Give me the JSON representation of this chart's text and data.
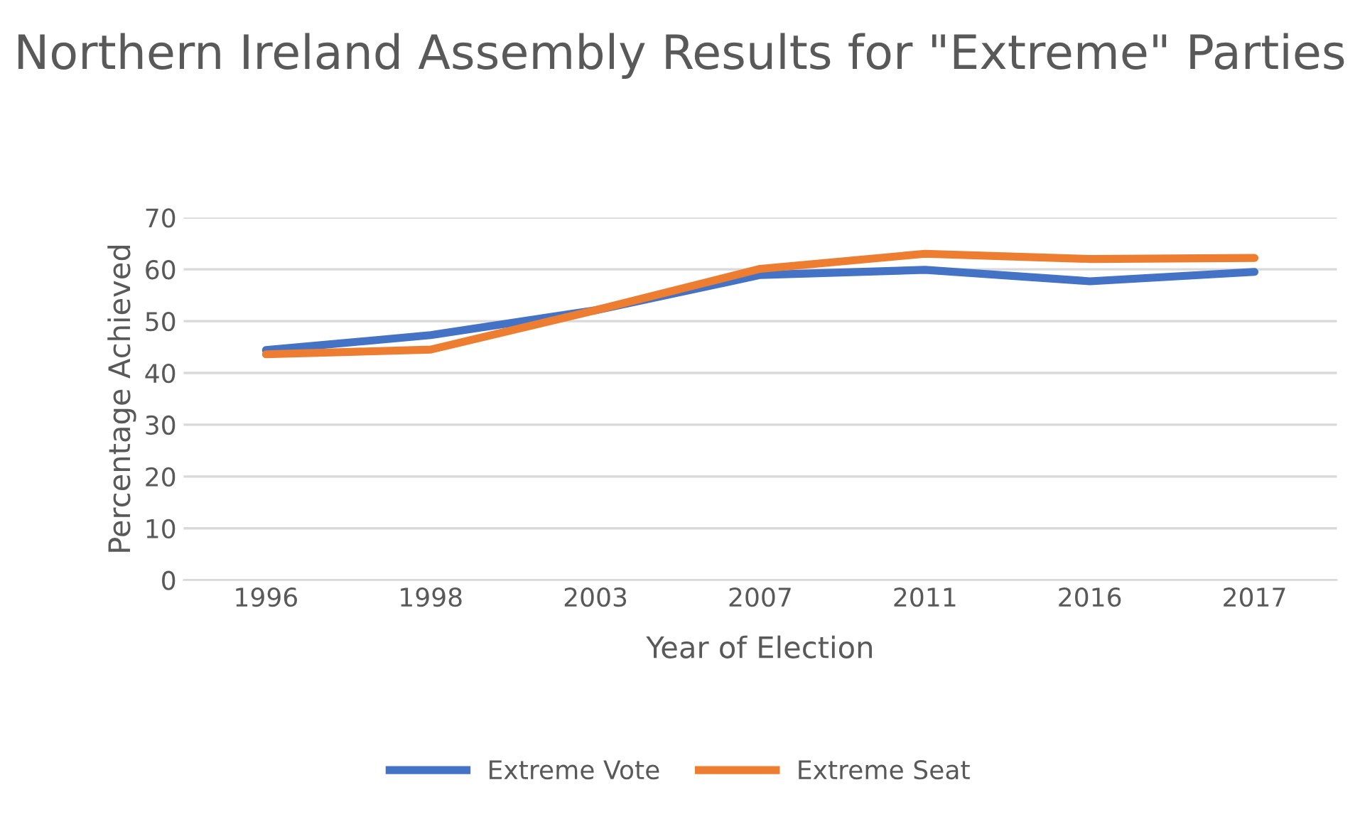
{
  "chart_data": {
    "type": "line",
    "title": "Northern Ireland Assembly Results for \"Extreme\" Parties",
    "xlabel": "Year of Election",
    "ylabel": "Percentage Achieved",
    "categories": [
      "1996",
      "1998",
      "2003",
      "2007",
      "2011",
      "2016",
      "2017"
    ],
    "series": [
      {
        "name": "Extreme Vote",
        "color": "#4472c4",
        "values": [
          44.4,
          47.3,
          52.1,
          58.9,
          59.9,
          57.7,
          59.5
        ]
      },
      {
        "name": "Extreme Seat",
        "color": "#ed7d31",
        "values": [
          43.6,
          44.5,
          52.1,
          60.1,
          63.0,
          62.0,
          62.2
        ]
      }
    ],
    "ylim": [
      0,
      70
    ],
    "yticks": [
      0,
      10,
      20,
      30,
      40,
      50,
      60,
      70
    ],
    "grid": "y",
    "legend": "bottom",
    "marker": "none",
    "line_style": "solid"
  }
}
